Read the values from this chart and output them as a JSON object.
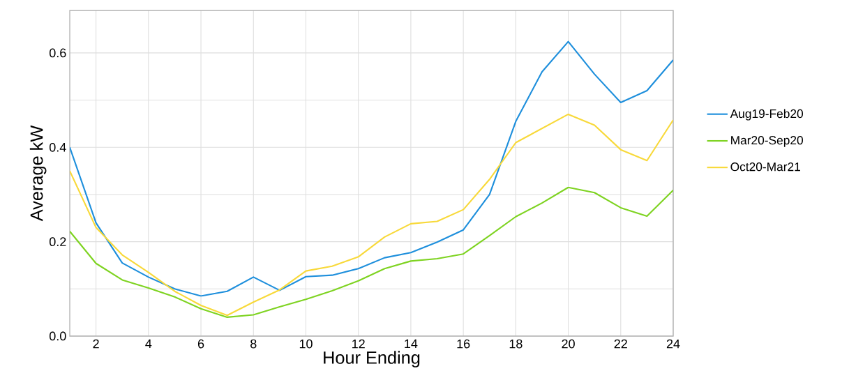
{
  "chart_data": {
    "type": "line",
    "xlabel": "Hour Ending",
    "ylabel": "Average kW",
    "x": [
      1,
      2,
      3,
      4,
      5,
      6,
      7,
      8,
      9,
      10,
      11,
      12,
      13,
      14,
      15,
      16,
      17,
      18,
      19,
      20,
      21,
      22,
      23,
      24
    ],
    "series": [
      {
        "name": "Aug19-Feb20",
        "color": "#1e8fdc",
        "values": [
          0.4,
          0.24,
          0.155,
          0.125,
          0.1,
          0.085,
          0.095,
          0.125,
          0.097,
          0.126,
          0.129,
          0.143,
          0.166,
          0.177,
          0.199,
          0.225,
          0.3,
          0.455,
          0.56,
          0.624,
          0.555,
          0.495,
          0.52,
          0.585
        ]
      },
      {
        "name": "Mar20-Sep20",
        "color": "#7ed321",
        "values": [
          0.222,
          0.154,
          0.119,
          0.102,
          0.083,
          0.058,
          0.04,
          0.045,
          0.062,
          0.078,
          0.096,
          0.117,
          0.143,
          0.159,
          0.164,
          0.174,
          0.213,
          0.253,
          0.282,
          0.315,
          0.304,
          0.272,
          0.254,
          0.309
        ]
      },
      {
        "name": "Oct20-Mar21",
        "color": "#f8d93a",
        "values": [
          0.35,
          0.23,
          0.172,
          0.135,
          0.095,
          0.065,
          0.044,
          0.072,
          0.098,
          0.138,
          0.148,
          0.168,
          0.21,
          0.238,
          0.243,
          0.268,
          0.332,
          0.41,
          0.44,
          0.47,
          0.447,
          0.395,
          0.372,
          0.458
        ]
      }
    ],
    "xlim": [
      1,
      24
    ],
    "xticks": [
      2,
      4,
      6,
      8,
      10,
      12,
      14,
      16,
      18,
      20,
      22,
      24
    ],
    "ylim": [
      0,
      0.69
    ],
    "yticks": [
      {
        "value": 0,
        "label": "0.0"
      },
      {
        "value": 0.1,
        "label": null
      },
      0.2,
      {
        "value": 0.3,
        "label": null
      },
      0.4,
      {
        "value": 0.5,
        "label": null
      },
      0.6
    ],
    "grid": true,
    "legend": "right",
    "marker": "none",
    "line_style": "solid"
  }
}
